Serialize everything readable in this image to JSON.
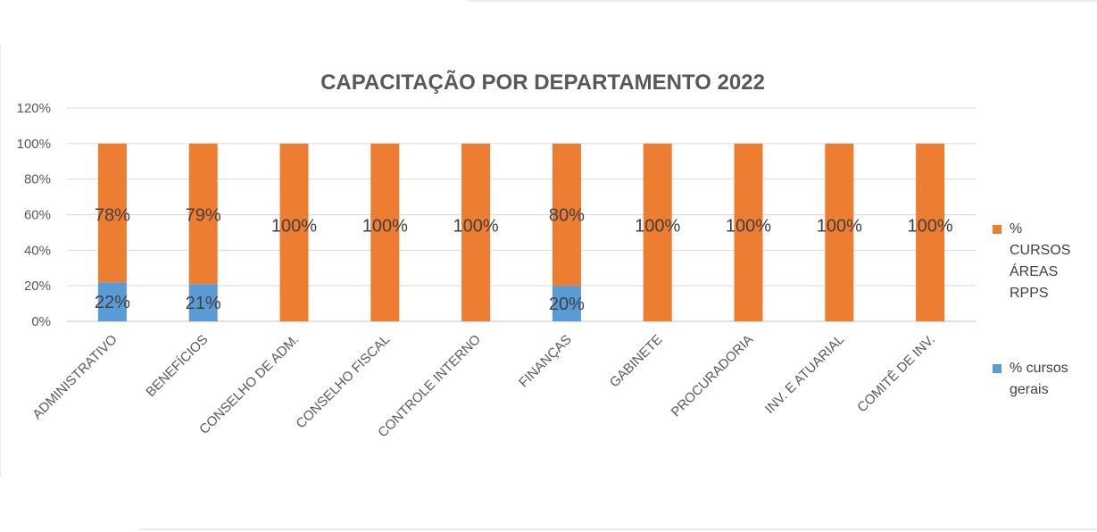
{
  "chart_data": {
    "type": "bar",
    "stacked": true,
    "title": "CAPACITAÇÃO POR DEPARTAMENTO  2022",
    "xlabel": "",
    "ylabel": "",
    "ylim": [
      0,
      120
    ],
    "yticks": [
      "0%",
      "20%",
      "40%",
      "60%",
      "80%",
      "100%",
      "120%"
    ],
    "grid": true,
    "legend_position": "right",
    "categories": [
      "ADMINISTRATIVO",
      "BENEFÍCIOS",
      "CONSELHO DE ADM.",
      "CONSELHO FISCAL",
      "CONTROLE INTERNO",
      "FINANÇAS",
      "GABINETE",
      "PROCURADORIA",
      "INV. E ATUARIAL",
      "COMITÊ DE INV."
    ],
    "series": [
      {
        "name": "% cursos gerais",
        "legend_lines": [
          "% cursos",
          "gerais"
        ],
        "color": "#5b9bd5",
        "values": [
          22,
          21,
          0,
          0,
          0,
          20,
          0,
          0,
          0,
          0
        ],
        "labels": [
          "22%",
          "21%",
          "",
          "",
          "",
          "20%",
          "",
          "",
          "",
          ""
        ]
      },
      {
        "name": "% CURSOS ÁREAS RPPS",
        "legend_lines": [
          "%",
          "CURSOS",
          "ÁREAS",
          "RPPS"
        ],
        "color": "#ed7d31",
        "values": [
          78,
          79,
          100,
          100,
          100,
          80,
          100,
          100,
          100,
          100
        ],
        "labels": [
          "78%",
          "79%",
          "100%",
          "100%",
          "100%",
          "80%",
          "100%",
          "100%",
          "100%",
          "100%"
        ]
      }
    ]
  }
}
